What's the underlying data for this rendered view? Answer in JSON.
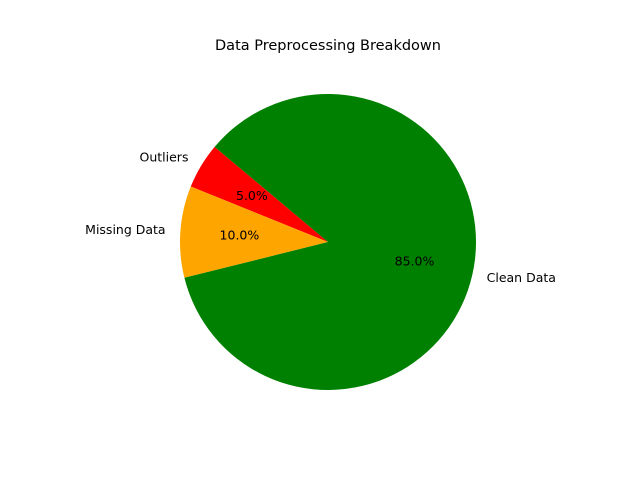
{
  "chart_data": {
    "type": "pie",
    "title": "Data Preprocessing Breakdown",
    "start_angle_deg": 140,
    "counterclockwise": true,
    "slices": [
      {
        "label": "Outliers",
        "value": 5.0,
        "pct_text": "5.0%",
        "color": "#ff0000"
      },
      {
        "label": "Missing Data",
        "value": 10.0,
        "pct_text": "10.0%",
        "color": "#ffa500"
      },
      {
        "label": "Clean Data",
        "value": 85.0,
        "pct_text": "85.0%",
        "color": "#008000"
      }
    ]
  }
}
